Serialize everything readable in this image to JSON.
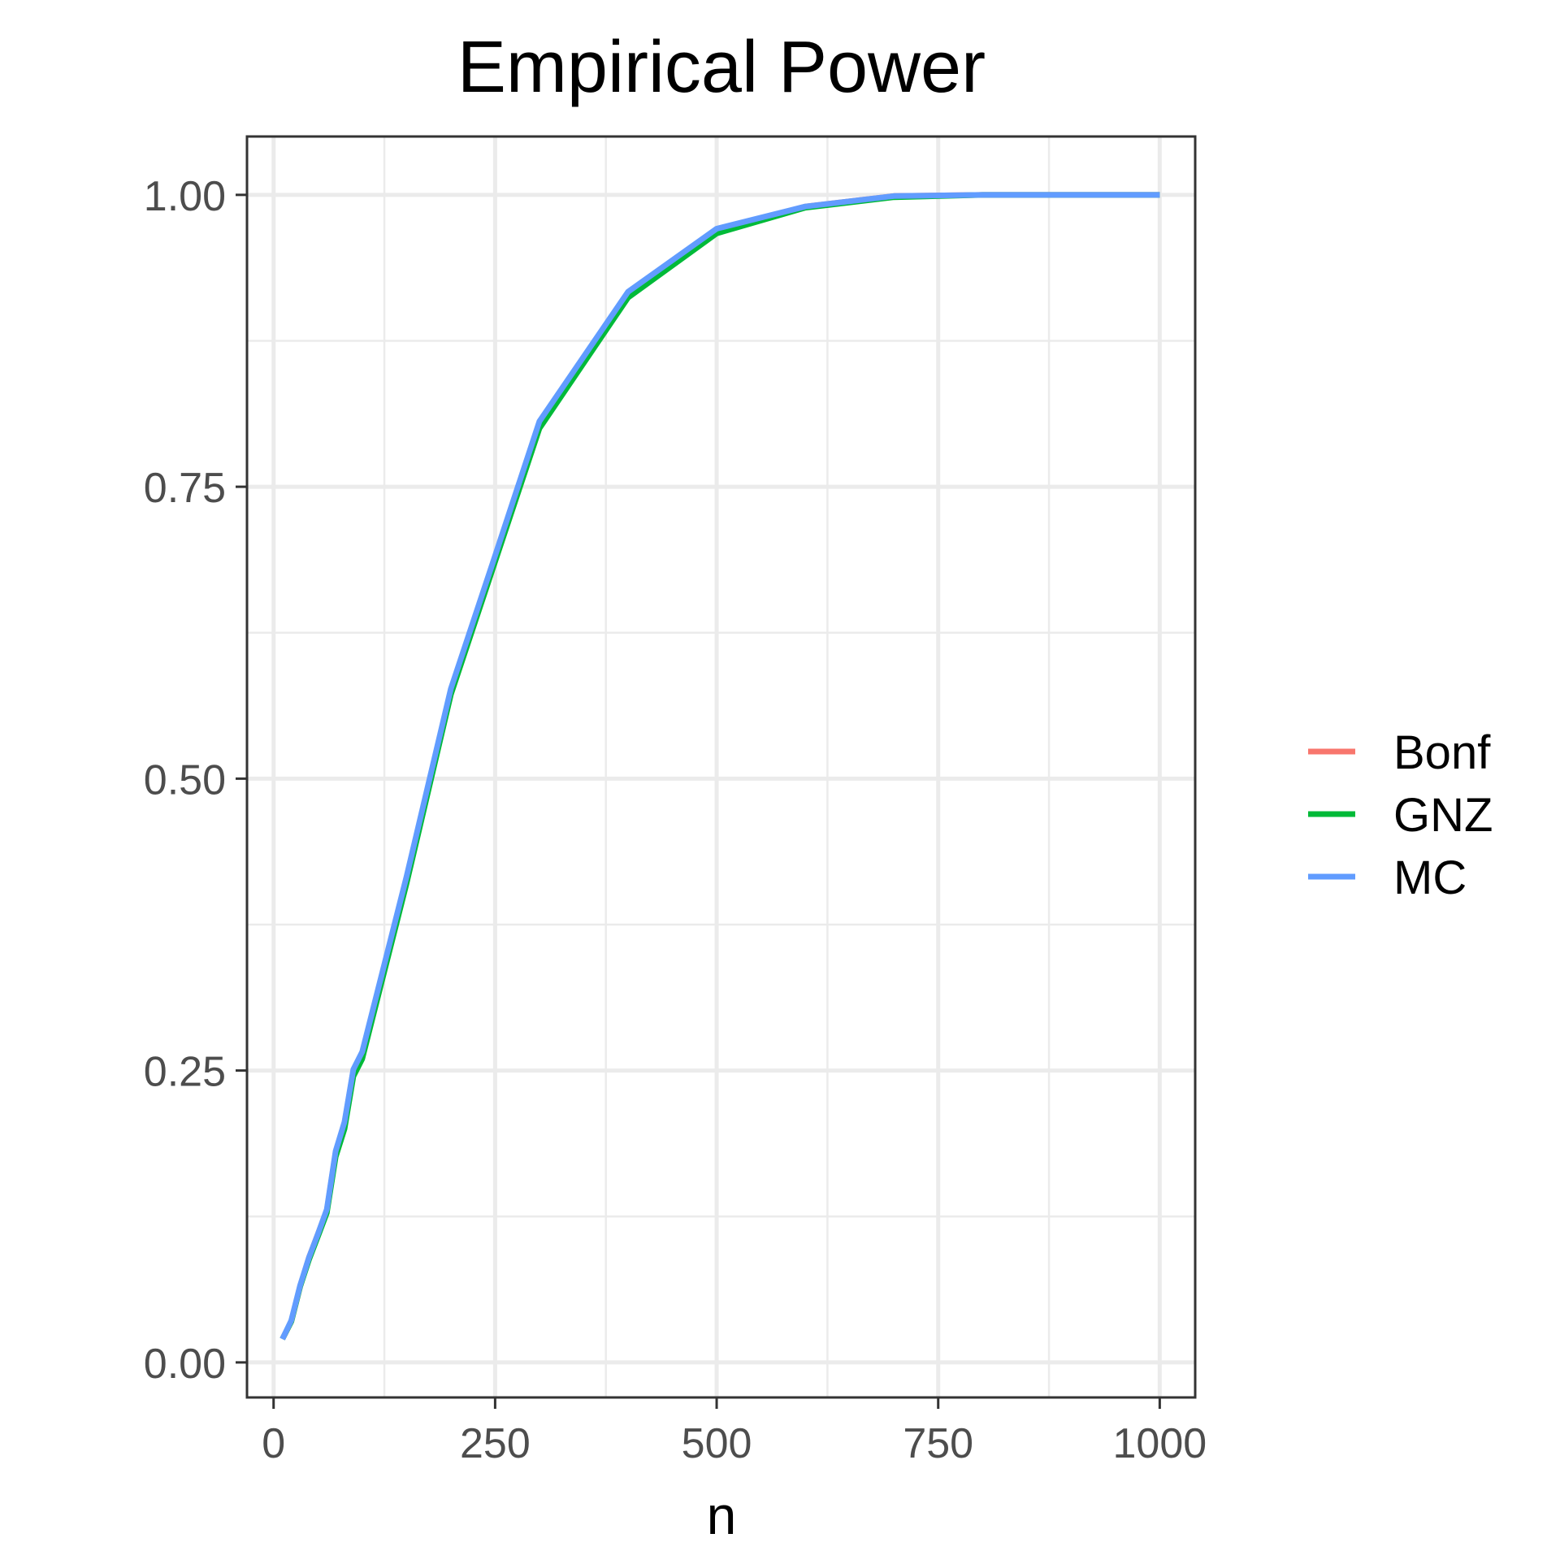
{
  "chart_data": {
    "type": "line",
    "title": "Empirical Power",
    "xlabel": "n",
    "ylabel": "",
    "xlim": [
      -30,
      1040
    ],
    "ylim": [
      -0.03,
      1.05
    ],
    "x_ticks": [
      0,
      250,
      500,
      750,
      1000
    ],
    "x_tick_labels": [
      "0",
      "250",
      "500",
      "750",
      "1000"
    ],
    "y_ticks": [
      0,
      0.25,
      0.5,
      0.75,
      1.0
    ],
    "y_tick_labels": [
      "0.00",
      "0.25",
      "0.50",
      "0.75",
      "1.00"
    ],
    "x_minor_ticks": [
      125,
      375,
      625,
      875
    ],
    "y_minor_ticks": [
      0.125,
      0.375,
      0.625,
      0.875
    ],
    "grid": true,
    "legend_position": "right",
    "x": [
      10,
      20,
      30,
      40,
      50,
      60,
      70,
      80,
      90,
      100,
      150,
      200,
      250,
      300,
      400,
      500,
      600,
      700,
      800,
      900,
      1000
    ],
    "series": [
      {
        "name": "Bonf",
        "color": "#F8766D",
        "values": [
          0.02,
          0.035,
          0.065,
          0.09,
          0.11,
          0.13,
          0.18,
          0.205,
          0.25,
          0.265,
          0.415,
          0.575,
          0.69,
          0.805,
          0.915,
          0.97,
          0.99,
          0.999,
          1.0,
          1.0,
          1.0
        ]
      },
      {
        "name": "GNZ",
        "color": "#00BA38",
        "values": [
          0.02,
          0.035,
          0.065,
          0.088,
          0.108,
          0.128,
          0.176,
          0.2,
          0.245,
          0.26,
          0.41,
          0.572,
          0.686,
          0.8,
          0.912,
          0.967,
          0.989,
          0.998,
          1.0,
          1.0,
          1.0
        ]
      },
      {
        "name": "MC",
        "color": "#619CFF",
        "values": [
          0.02,
          0.036,
          0.066,
          0.09,
          0.11,
          0.131,
          0.181,
          0.206,
          0.251,
          0.266,
          0.416,
          0.577,
          0.691,
          0.806,
          0.917,
          0.971,
          0.99,
          0.999,
          1.0,
          1.0,
          1.0
        ]
      }
    ]
  }
}
